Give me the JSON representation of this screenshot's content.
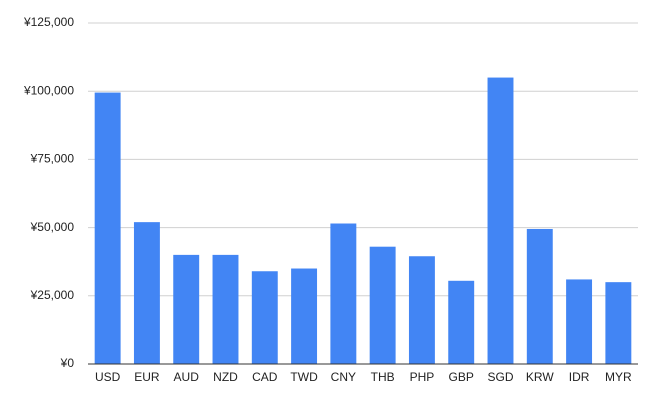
{
  "chart_data": {
    "type": "bar",
    "categories": [
      "USD",
      "EUR",
      "AUD",
      "NZD",
      "CAD",
      "TWD",
      "CNY",
      "THB",
      "PHP",
      "GBP",
      "SGD",
      "KRW",
      "IDR",
      "MYR"
    ],
    "values": [
      99500,
      52000,
      40000,
      40000,
      34000,
      35000,
      51500,
      43000,
      39500,
      30500,
      105000,
      49500,
      31000,
      30000
    ],
    "color": "#4285f4",
    "ylim": [
      0,
      125000
    ],
    "yticks": [
      {
        "value": 0,
        "label": "¥0"
      },
      {
        "value": 25000,
        "label": "¥25,000"
      },
      {
        "value": 50000,
        "label": "¥50,000"
      },
      {
        "value": 75000,
        "label": "¥75,000"
      },
      {
        "value": 100000,
        "label": "¥100,000"
      },
      {
        "value": 125000,
        "label": "¥125,000"
      }
    ],
    "grid": true
  }
}
